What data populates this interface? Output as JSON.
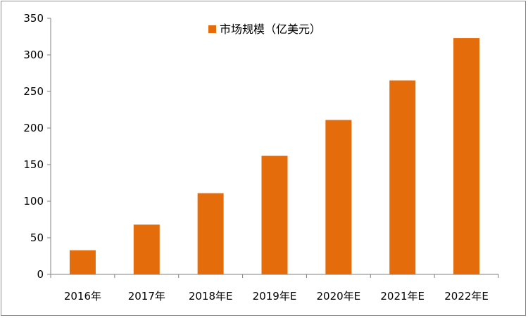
{
  "chart_data": {
    "type": "bar",
    "categories": [
      "2016年",
      "2017年",
      "2018年E",
      "2019年E",
      "2020年E",
      "2021年E",
      "2022年E"
    ],
    "series": [
      {
        "name": "市场规模（亿美元）",
        "values": [
          33,
          68,
          111,
          162,
          211,
          265,
          323
        ],
        "color": "#E46C0A"
      }
    ],
    "ylim": [
      0,
      350
    ],
    "yticks": [
      0,
      50,
      100,
      150,
      200,
      250,
      300,
      350
    ],
    "grid": false,
    "legend_position": "top-center",
    "xlabel": "",
    "ylabel": ""
  }
}
